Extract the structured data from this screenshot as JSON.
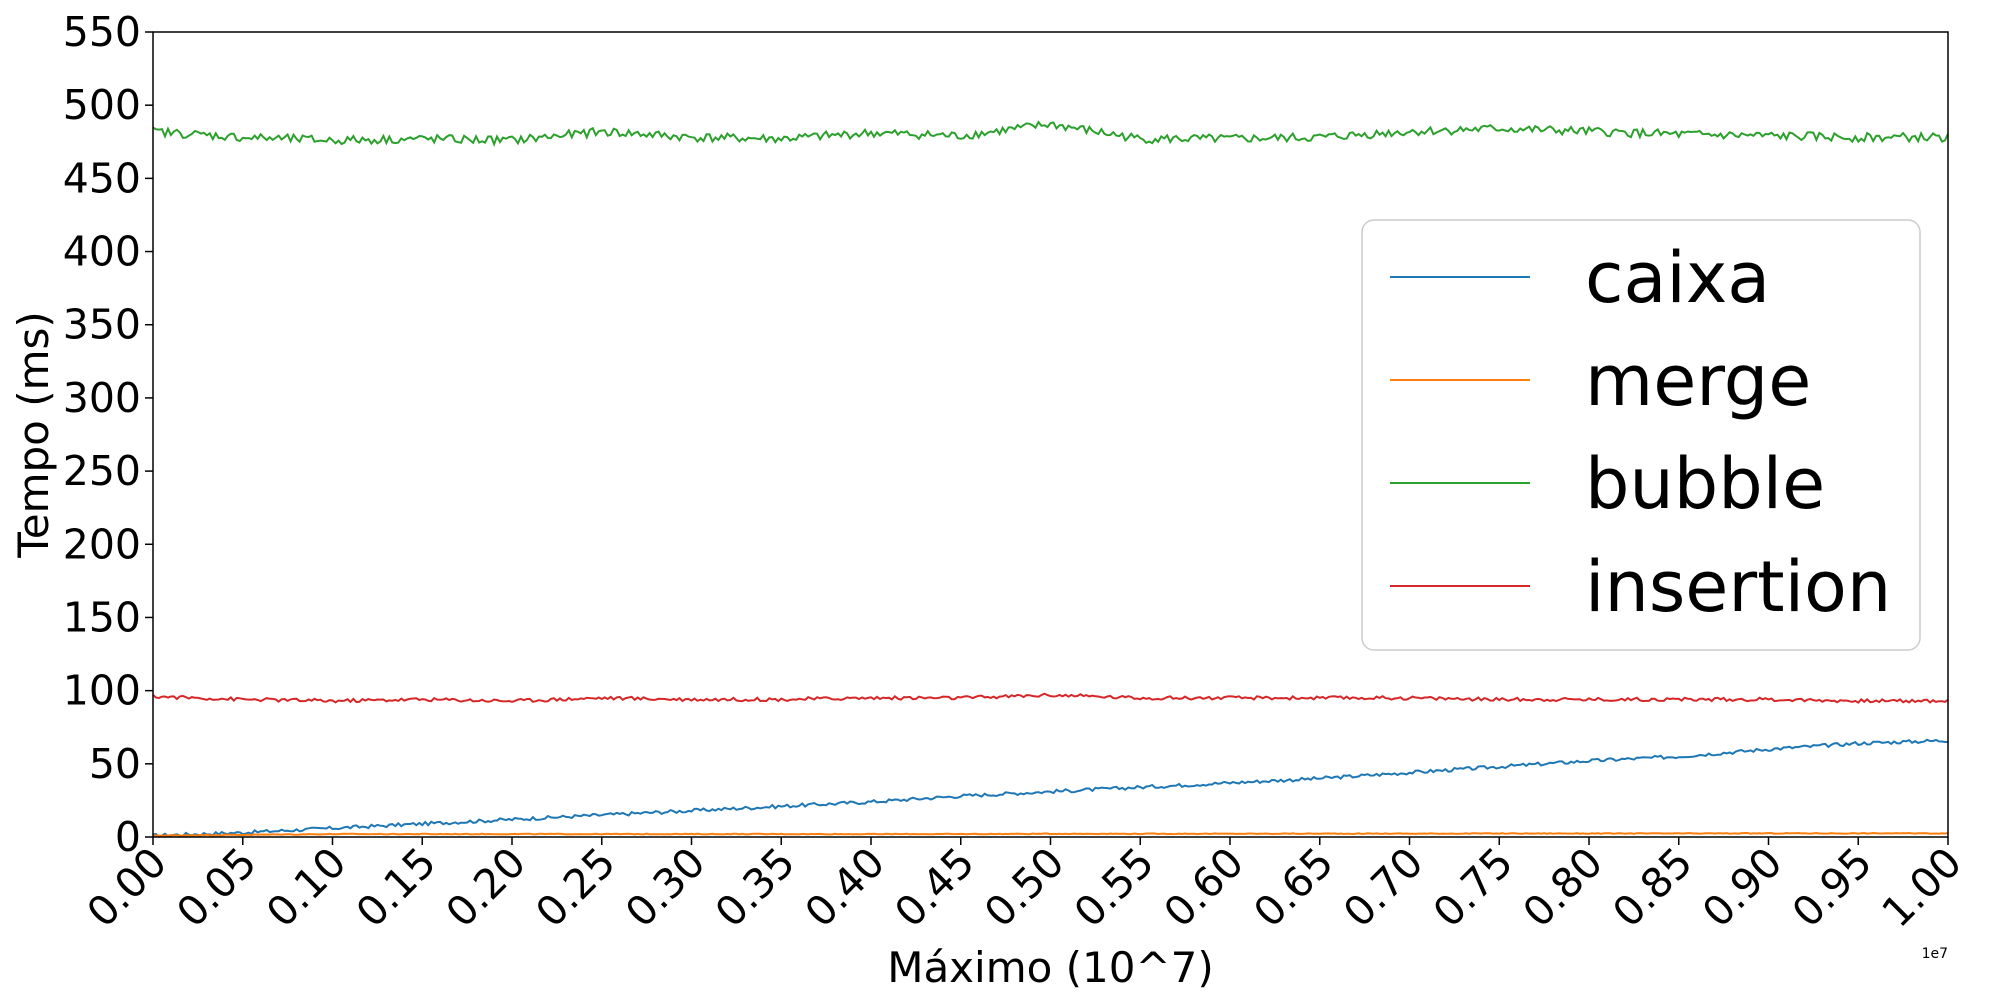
{
  "chart_data": {
    "type": "line",
    "title": "",
    "xlabel": "Máximo (10^7)",
    "ylabel": "Tempo (ms)",
    "x_offset_label": "1e7",
    "xlim": [
      0.0,
      1.0
    ],
    "ylim": [
      0,
      550
    ],
    "x_ticks": [
      "0.00",
      "0.05",
      "0.10",
      "0.15",
      "0.20",
      "0.25",
      "0.30",
      "0.35",
      "0.40",
      "0.45",
      "0.50",
      "0.55",
      "0.60",
      "0.65",
      "0.70",
      "0.75",
      "0.80",
      "0.85",
      "0.90",
      "0.95",
      "1.00"
    ],
    "y_ticks": [
      "0",
      "50",
      "100",
      "150",
      "200",
      "250",
      "300",
      "350",
      "400",
      "450",
      "500",
      "550"
    ],
    "grid": false,
    "legend_position": "center-right",
    "x": [
      0.0,
      0.05,
      0.1,
      0.15,
      0.2,
      0.25,
      0.3,
      0.35,
      0.4,
      0.45,
      0.5,
      0.55,
      0.6,
      0.65,
      0.7,
      0.75,
      0.8,
      0.85,
      0.9,
      0.95,
      1.0
    ],
    "series": [
      {
        "name": "caixa",
        "color": "#1f77b4",
        "values": [
          1,
          3,
          6,
          9,
          12,
          15,
          18,
          21,
          24,
          28,
          31,
          34,
          37,
          40,
          44,
          48,
          52,
          55,
          60,
          64,
          66
        ]
      },
      {
        "name": "merge",
        "color": "#ff7f0e",
        "values": [
          1,
          1.5,
          2,
          2,
          2,
          2,
          2,
          2,
          2,
          2,
          2.2,
          2.2,
          2.2,
          2.3,
          2.3,
          2.4,
          2.4,
          2.4,
          2.5,
          2.5,
          2.5
        ]
      },
      {
        "name": "bubble",
        "color": "#2ca02c",
        "values": [
          482,
          478,
          476,
          477,
          476,
          482,
          478,
          477,
          481,
          479,
          487,
          477,
          477,
          478,
          482,
          484,
          482,
          480,
          479,
          478,
          478
        ]
      },
      {
        "name": "insertion",
        "color": "#d62728",
        "values": [
          96,
          94,
          93,
          94,
          93,
          95,
          94,
          94,
          95,
          95,
          97,
          95,
          95,
          95,
          95,
          94,
          94,
          94,
          94,
          93,
          93
        ]
      }
    ]
  }
}
